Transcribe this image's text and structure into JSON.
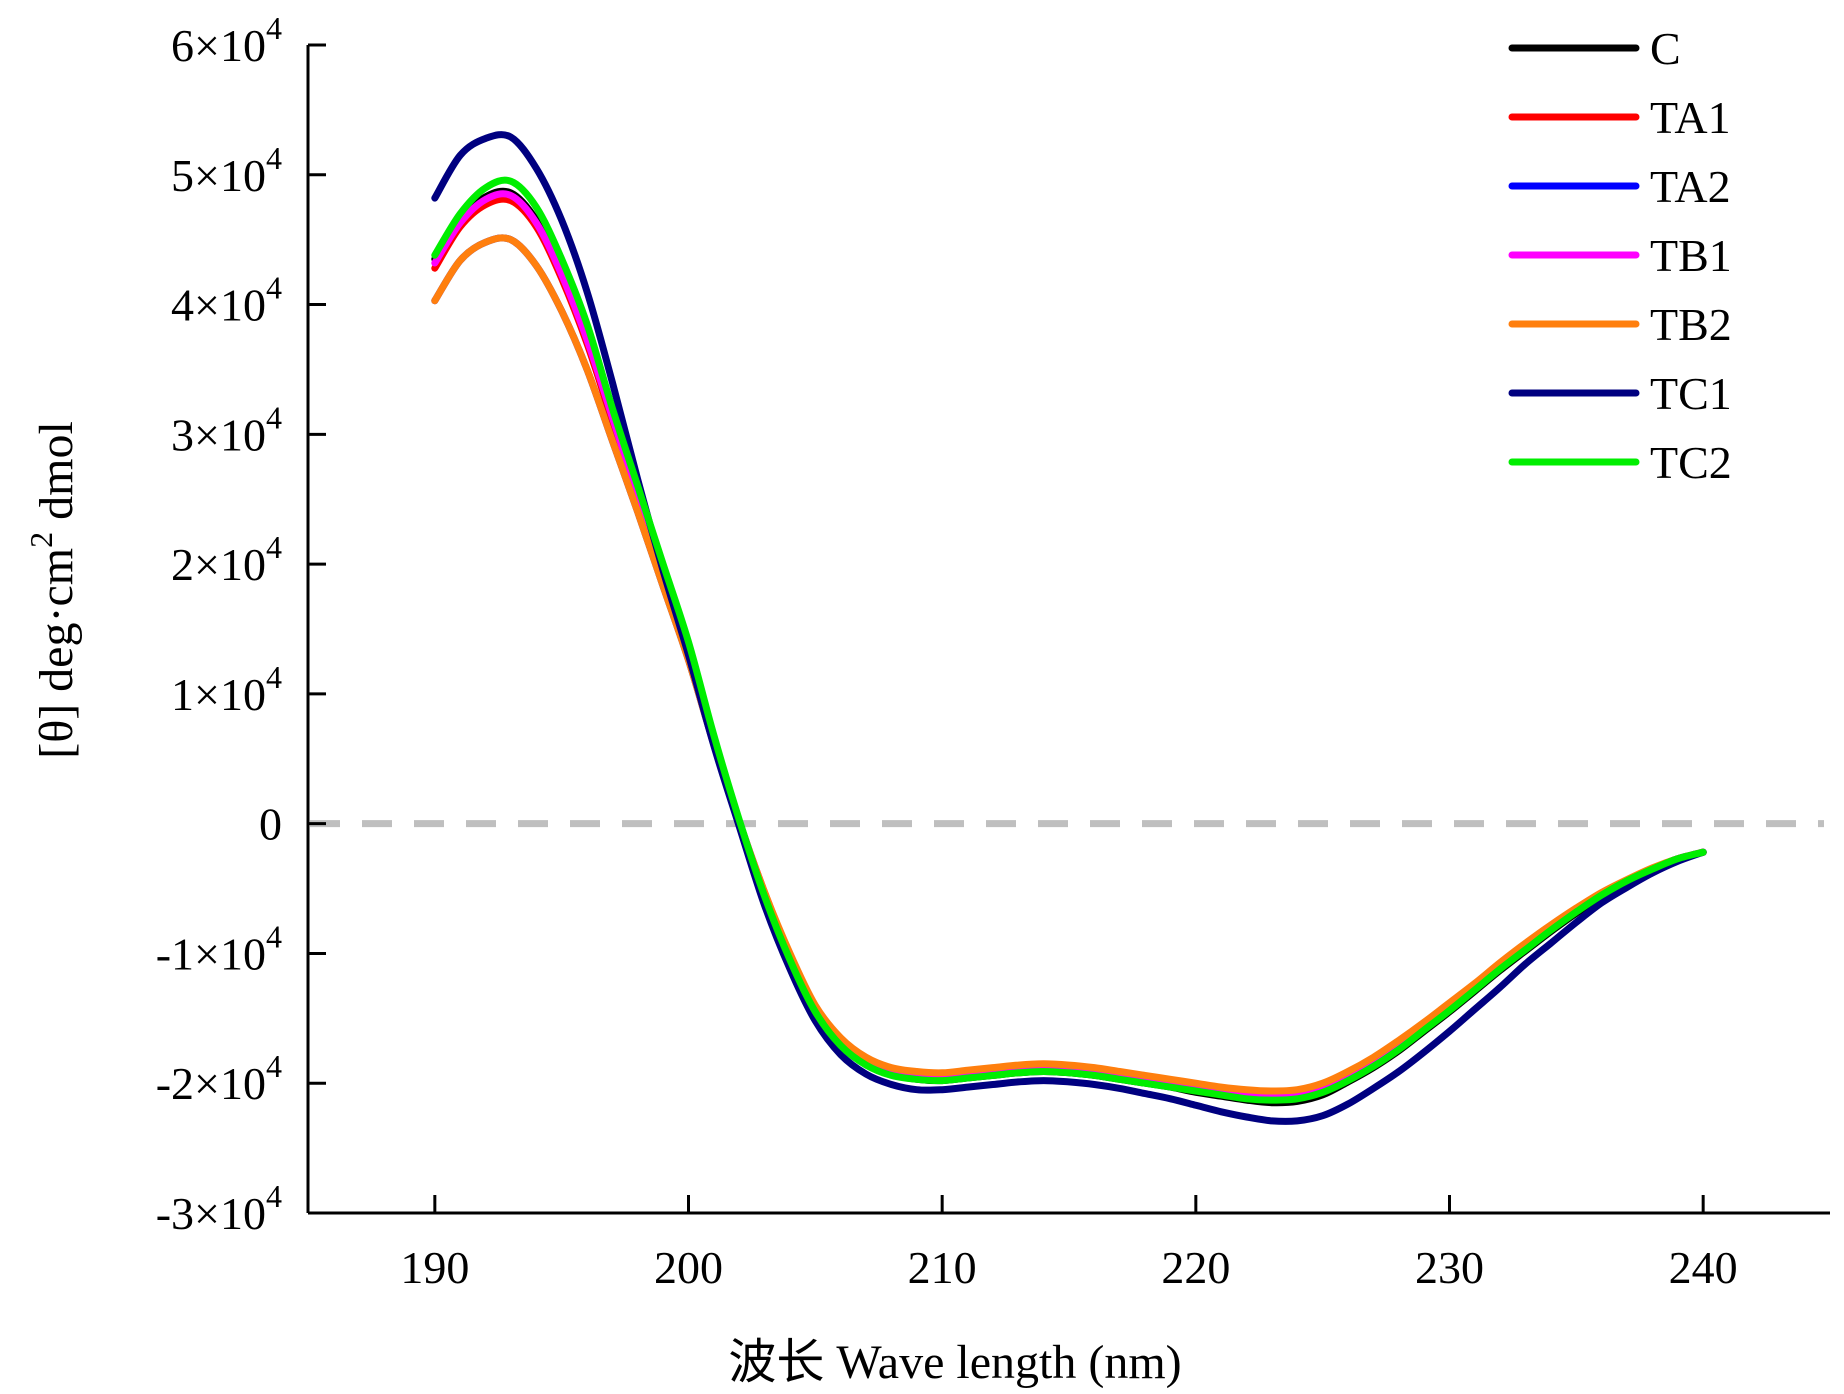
{
  "chart_data": {
    "type": "line",
    "xlabel": "波长 Wave length (nm)",
    "ylabel_parts": [
      "[θ] deg·cm",
      "2",
      " dmol"
    ],
    "xlim": [
      185,
      245
    ],
    "ylim": [
      -30000,
      60000
    ],
    "x_ticks": [
      190,
      200,
      210,
      220,
      230,
      240
    ],
    "y_ticks": [
      {
        "value": 60000,
        "mantissa": "6",
        "times": "×10",
        "exp": "4"
      },
      {
        "value": 50000,
        "mantissa": "5",
        "times": "×10",
        "exp": "4"
      },
      {
        "value": 40000,
        "mantissa": "4",
        "times": "×10",
        "exp": "4"
      },
      {
        "value": 30000,
        "mantissa": "3",
        "times": "×10",
        "exp": "4"
      },
      {
        "value": 20000,
        "mantissa": "2",
        "times": "×10",
        "exp": "4"
      },
      {
        "value": 10000,
        "mantissa": "1",
        "times": "×10",
        "exp": "4"
      },
      {
        "value": 0,
        "mantissa": "0",
        "times": "",
        "exp": ""
      },
      {
        "value": -10000,
        "mantissa": "-1",
        "times": "×10",
        "exp": "4"
      },
      {
        "value": -20000,
        "mantissa": "-2",
        "times": "×10",
        "exp": "4"
      },
      {
        "value": -30000,
        "mantissa": "-3",
        "times": "×10",
        "exp": "4"
      }
    ],
    "zero_line": {
      "y": 0,
      "color": "#bfbfbf",
      "style": "dashed"
    },
    "grid": false,
    "legend_position": "top-right",
    "x": [
      190,
      191,
      192,
      193,
      194,
      195,
      196,
      197,
      198,
      199,
      200,
      201,
      202,
      203,
      204,
      205,
      206,
      207,
      208,
      209,
      210,
      211,
      212,
      213,
      214,
      215,
      216,
      217,
      218,
      219,
      220,
      221,
      222,
      223,
      224,
      225,
      226,
      227,
      228,
      229,
      230,
      231,
      232,
      233,
      234,
      235,
      236,
      237,
      238,
      239,
      240
    ],
    "series": [
      {
        "name": "C",
        "color": "#000000",
        "values": [
          43500,
          46500,
          48300,
          48600,
          46500,
          42500,
          37500,
          31500,
          25500,
          19500,
          13500,
          6500,
          200,
          -5500,
          -10500,
          -14500,
          -17000,
          -18500,
          -19300,
          -19700,
          -19800,
          -19600,
          -19400,
          -19200,
          -19100,
          -19200,
          -19400,
          -19700,
          -20000,
          -20300,
          -20700,
          -21000,
          -21300,
          -21500,
          -21400,
          -20900,
          -19900,
          -18800,
          -17500,
          -16000,
          -14500,
          -12900,
          -11300,
          -9800,
          -8300,
          -6900,
          -5600,
          -4500,
          -3500,
          -2700,
          -2200
        ]
      },
      {
        "name": "TA1",
        "color": "#ff0000",
        "values": [
          42800,
          46000,
          47700,
          48000,
          46000,
          42000,
          37000,
          31000,
          25000,
          19000,
          13000,
          6300,
          200,
          -5300,
          -10200,
          -14200,
          -16700,
          -18200,
          -19000,
          -19300,
          -19400,
          -19200,
          -19000,
          -18800,
          -18700,
          -18800,
          -19000,
          -19300,
          -19600,
          -19900,
          -20200,
          -20500,
          -20800,
          -20900,
          -20800,
          -20300,
          -19400,
          -18300,
          -17000,
          -15600,
          -14100,
          -12500,
          -10900,
          -9400,
          -8000,
          -6700,
          -5400,
          -4400,
          -3500,
          -2700,
          -2200
        ]
      },
      {
        "name": "TA2",
        "color": "#0000ff",
        "values": [
          40300,
          43400,
          44800,
          45000,
          43000,
          39500,
          35000,
          29500,
          24000,
          18300,
          12600,
          6100,
          100,
          -5500,
          -10300,
          -14300,
          -16800,
          -18300,
          -19100,
          -19500,
          -19600,
          -19400,
          -19200,
          -19000,
          -18900,
          -19000,
          -19200,
          -19500,
          -19800,
          -20100,
          -20400,
          -20700,
          -21000,
          -21100,
          -21000,
          -20500,
          -19600,
          -18500,
          -17200,
          -15700,
          -14200,
          -12600,
          -11000,
          -9500,
          -8100,
          -6700,
          -5400,
          -4400,
          -3500,
          -2700,
          -2200
        ]
      },
      {
        "name": "TB1",
        "color": "#ff00ff",
        "values": [
          43200,
          46300,
          48100,
          48400,
          46300,
          42300,
          37300,
          31300,
          25300,
          19300,
          13300,
          6400,
          200,
          -5400,
          -10300,
          -14300,
          -16800,
          -18300,
          -19100,
          -19400,
          -19500,
          -19300,
          -19100,
          -18900,
          -18800,
          -18900,
          -19100,
          -19400,
          -19700,
          -20000,
          -20300,
          -20600,
          -20900,
          -21000,
          -20900,
          -20400,
          -19500,
          -18400,
          -17100,
          -15700,
          -14200,
          -12600,
          -11000,
          -9500,
          -8100,
          -6700,
          -5400,
          -4400,
          -3500,
          -2700,
          -2200
        ]
      },
      {
        "name": "TB2",
        "color": "#ff7f0e",
        "values": [
          40300,
          43400,
          44800,
          45000,
          43000,
          39500,
          35000,
          29500,
          24000,
          18300,
          12600,
          6100,
          100,
          -5300,
          -10000,
          -14000,
          -16500,
          -18000,
          -18800,
          -19100,
          -19200,
          -19000,
          -18800,
          -18600,
          -18500,
          -18600,
          -18800,
          -19100,
          -19400,
          -19700,
          -20000,
          -20300,
          -20500,
          -20600,
          -20500,
          -20000,
          -19100,
          -18000,
          -16700,
          -15300,
          -13800,
          -12300,
          -10700,
          -9200,
          -7800,
          -6500,
          -5300,
          -4300,
          -3400,
          -2700,
          -2200
        ]
      },
      {
        "name": "TC1",
        "color": "#000080",
        "values": [
          48200,
          51500,
          52800,
          52900,
          50500,
          46500,
          41000,
          34000,
          26500,
          19500,
          13000,
          6000,
          -200,
          -6300,
          -11200,
          -15200,
          -17800,
          -19300,
          -20100,
          -20500,
          -20500,
          -20300,
          -20100,
          -19900,
          -19800,
          -19900,
          -20100,
          -20400,
          -20800,
          -21200,
          -21700,
          -22200,
          -22600,
          -22900,
          -22900,
          -22500,
          -21600,
          -20400,
          -19100,
          -17600,
          -16000,
          -14300,
          -12600,
          -10800,
          -9200,
          -7600,
          -6100,
          -4900,
          -3800,
          -2900,
          -2200
        ]
      },
      {
        "name": "TC2",
        "color": "#00ee00",
        "values": [
          43800,
          47000,
          49000,
          49500,
          47500,
          43500,
          38500,
          32000,
          26000,
          20000,
          14000,
          6800,
          300,
          -5600,
          -10500,
          -14500,
          -17100,
          -18600,
          -19400,
          -19700,
          -19800,
          -19600,
          -19400,
          -19200,
          -19100,
          -19200,
          -19400,
          -19700,
          -20000,
          -20300,
          -20600,
          -20900,
          -21200,
          -21300,
          -21200,
          -20700,
          -19800,
          -18700,
          -17400,
          -15900,
          -14400,
          -12800,
          -11200,
          -9700,
          -8200,
          -6800,
          -5500,
          -4400,
          -3500,
          -2700,
          -2200
        ]
      }
    ]
  }
}
